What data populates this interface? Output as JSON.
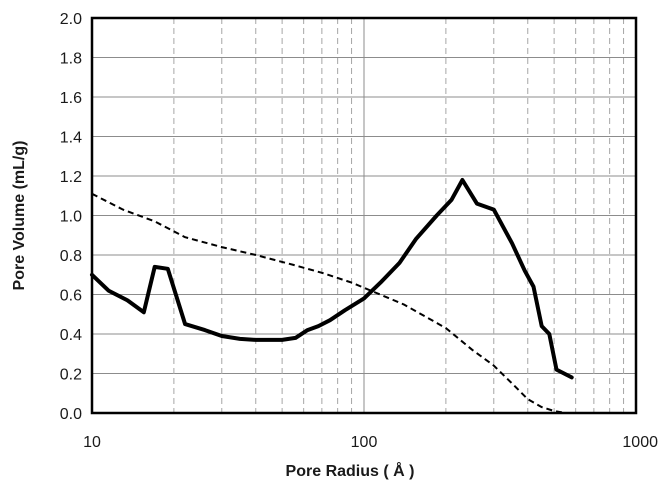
{
  "chart_data": {
    "type": "line",
    "xlabel": "Pore Radius ( Å )",
    "ylabel": "Pore Volume  (mL/g)",
    "xscale": "log",
    "xlim": [
      10,
      1000
    ],
    "ylim": [
      0,
      2.0
    ],
    "x_ticks": [
      10,
      100,
      1000
    ],
    "x_tick_labels": [
      "10",
      "100",
      "1000"
    ],
    "y_ticks": [
      0,
      0.2,
      0.4,
      0.6,
      0.8,
      1.0,
      1.2,
      1.4,
      1.6,
      1.8,
      2.0
    ],
    "y_tick_labels": [
      "0.0",
      "0.2",
      "0.4",
      "0.6",
      "0.8",
      "1.0",
      "1.2",
      "1.4",
      "1.6",
      "1.8",
      "2.0"
    ],
    "grid": {
      "major": true,
      "minor_x_dashed": true
    },
    "legend": "none",
    "series": [
      {
        "style": "solid",
        "color": "#000000",
        "x": [
          10,
          11.5,
          13.5,
          15.5,
          17,
          19,
          22,
          26,
          30,
          35,
          40,
          45,
          50,
          56,
          62,
          68,
          75,
          85,
          100,
          115,
          135,
          155,
          185,
          210,
          230,
          260,
          300,
          350,
          390,
          420,
          450,
          480,
          510,
          580
        ],
        "y": [
          0.7,
          0.62,
          0.57,
          0.51,
          0.74,
          0.73,
          0.45,
          0.42,
          0.39,
          0.375,
          0.37,
          0.37,
          0.37,
          0.38,
          0.42,
          0.44,
          0.47,
          0.52,
          0.58,
          0.66,
          0.76,
          0.88,
          1.0,
          1.08,
          1.18,
          1.06,
          1.03,
          0.86,
          0.72,
          0.64,
          0.44,
          0.4,
          0.22,
          0.18
        ]
      },
      {
        "style": "dashed",
        "color": "#000000",
        "x": [
          10,
          13,
          17,
          22,
          30,
          40,
          55,
          70,
          90,
          110,
          140,
          200,
          250,
          300,
          350,
          400,
          450,
          500,
          550,
          600
        ],
        "y": [
          1.11,
          1.03,
          0.97,
          0.89,
          0.84,
          0.8,
          0.75,
          0.71,
          0.66,
          0.61,
          0.55,
          0.43,
          0.32,
          0.24,
          0.15,
          0.07,
          0.03,
          0.01,
          0.0,
          0.0
        ]
      }
    ]
  }
}
